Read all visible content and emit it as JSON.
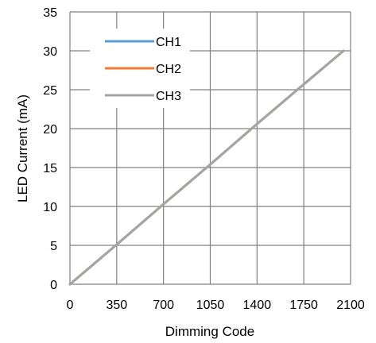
{
  "chart_data": {
    "type": "line",
    "title": "",
    "xlabel": "Dimming Code",
    "ylabel": "LED Current (mA)",
    "xlim": [
      0,
      2100
    ],
    "ylim": [
      0,
      35
    ],
    "x_ticks": [
      0,
      350,
      700,
      1050,
      1400,
      1750,
      2100
    ],
    "y_ticks": [
      0,
      5,
      10,
      15,
      20,
      25,
      30,
      35
    ],
    "x_tick_labels": [
      "0",
      "350",
      "700",
      "1050",
      "1400",
      "1750",
      "2100"
    ],
    "y_tick_labels": [
      "0",
      "5",
      "10",
      "15",
      "20",
      "25",
      "30",
      "35"
    ],
    "grid": true,
    "legend_position": "top-left",
    "series": [
      {
        "name": "CH1",
        "color": "#5B9BD5",
        "x": [
          0,
          350,
          700,
          1050,
          1400,
          1750,
          2047
        ],
        "y": [
          0,
          5.1,
          10.3,
          15.4,
          20.6,
          25.7,
          30.0
        ]
      },
      {
        "name": "CH2",
        "color": "#ED7D31",
        "x": [
          0,
          350,
          700,
          1050,
          1400,
          1750,
          2047
        ],
        "y": [
          0,
          5.1,
          10.3,
          15.4,
          20.6,
          25.7,
          30.0
        ]
      },
      {
        "name": "CH3",
        "color": "#A5A5A5",
        "x": [
          0,
          350,
          700,
          1050,
          1400,
          1750,
          2047
        ],
        "y": [
          0,
          5.1,
          10.3,
          15.4,
          20.6,
          25.7,
          30.0
        ]
      }
    ]
  }
}
